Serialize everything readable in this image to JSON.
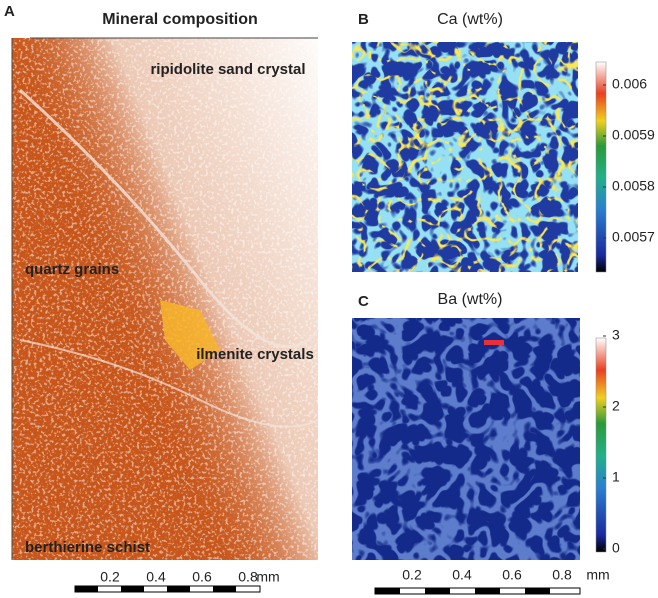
{
  "panels": [
    {
      "letter": "A",
      "title": "Mineral composition",
      "labels": [
        "ripidolite sand crystal",
        "quartz grains",
        "ilmenite crystals",
        "berthierine schist"
      ],
      "scale_bar": {
        "ticks": [
          0.2,
          0.4,
          0.6,
          0.8
        ],
        "unit": "mm"
      }
    },
    {
      "letter": "B",
      "title": "Ca (wt%)",
      "colorbar": {
        "ticks": [
          0.006,
          0.0059,
          0.0058,
          0.0057
        ]
      }
    },
    {
      "letter": "C",
      "title": "Ba (wt%)",
      "colorbar": {
        "ticks": [
          3,
          2,
          1,
          0
        ]
      },
      "scale_bar": {
        "ticks": [
          0.2,
          0.4,
          0.6,
          0.8
        ],
        "unit": "mm"
      }
    }
  ]
}
